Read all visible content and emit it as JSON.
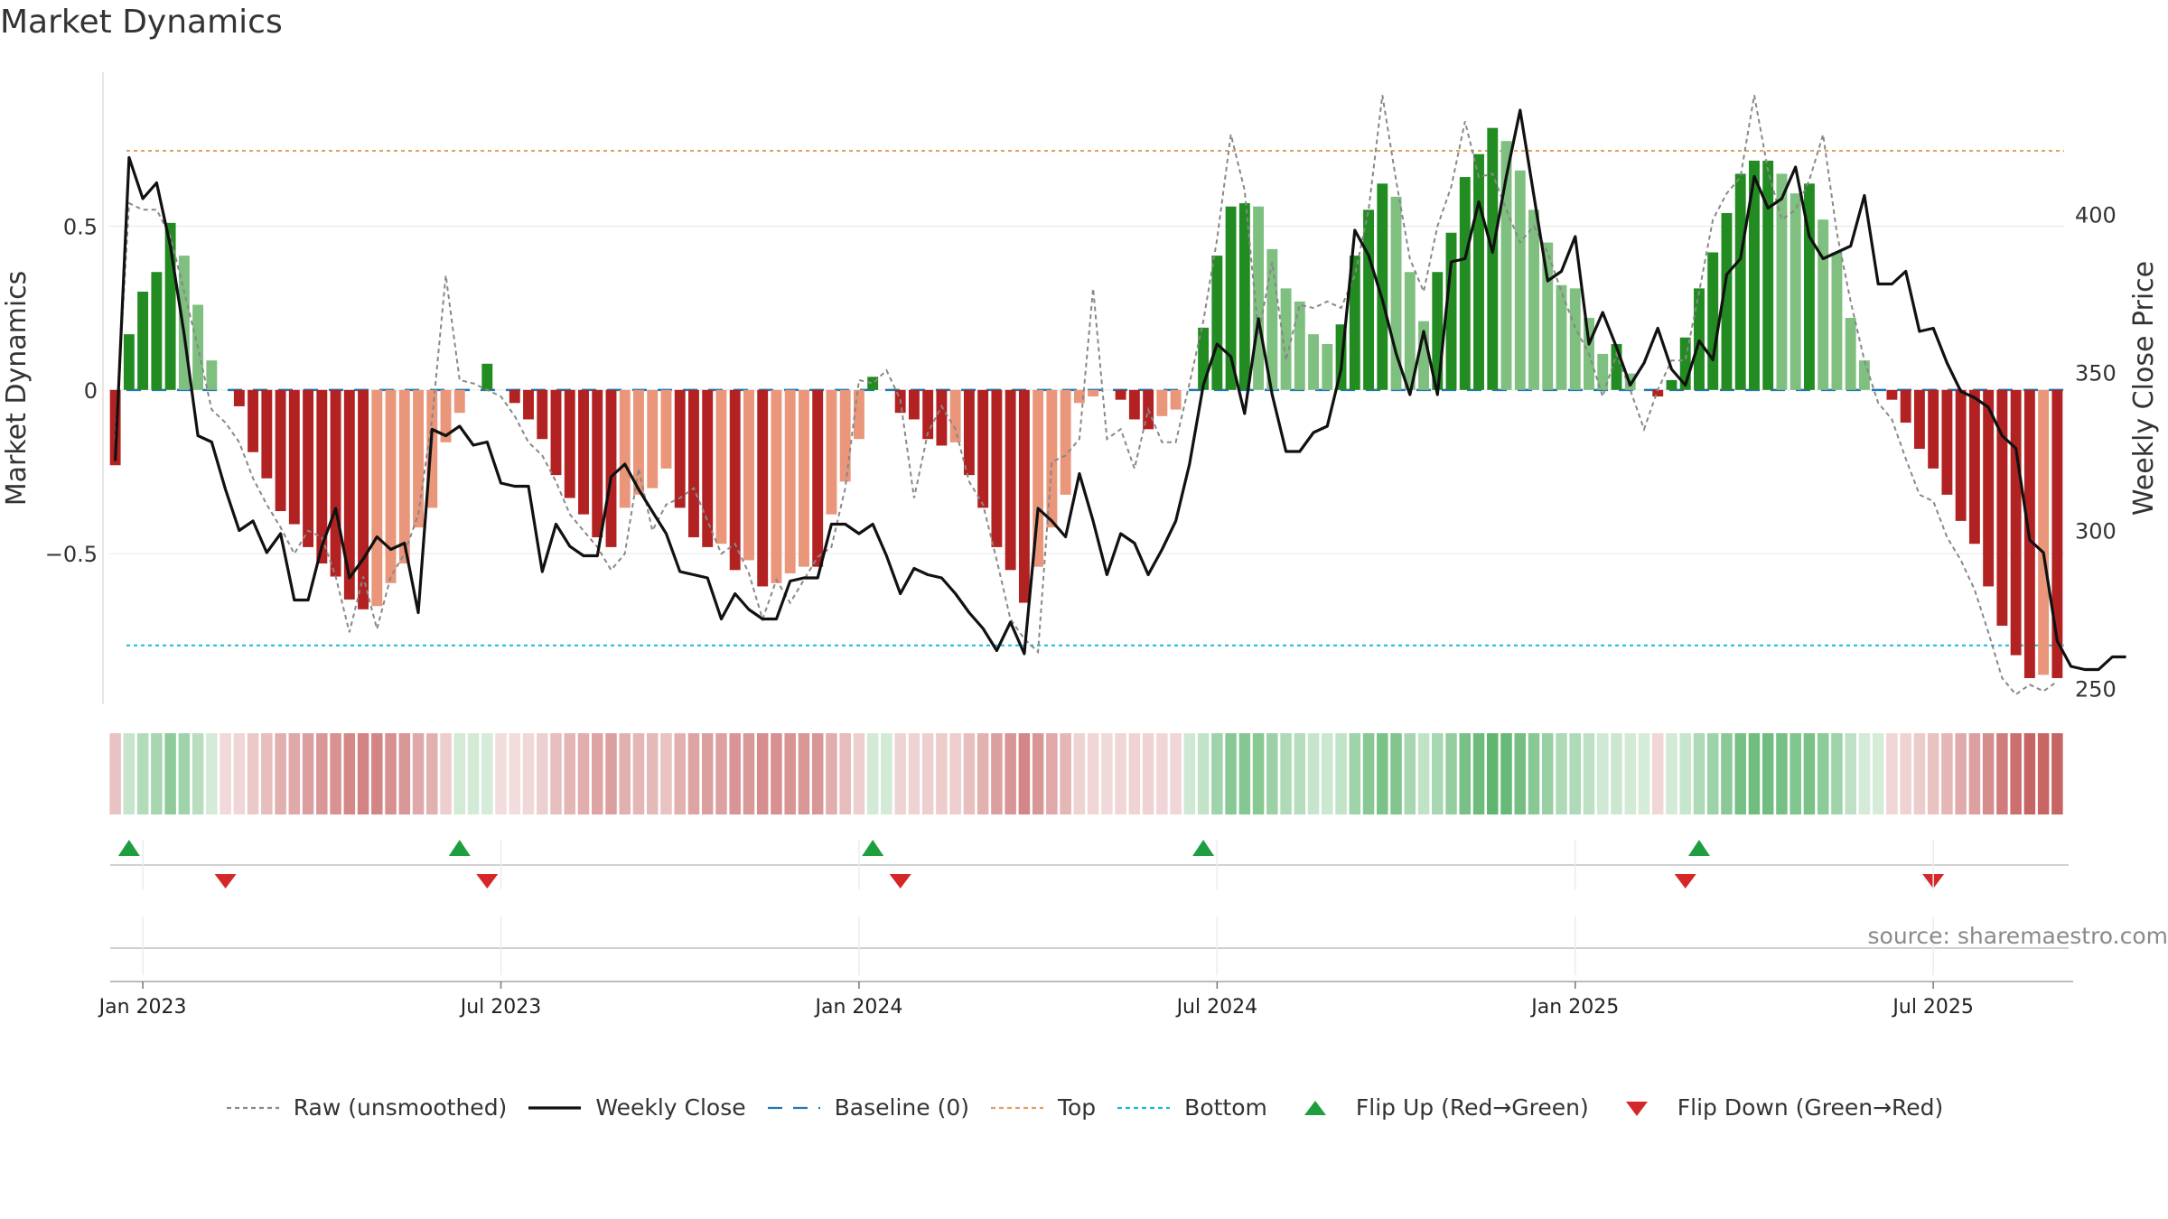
{
  "title": "Market Dynamics",
  "source": "source: sharemaestro.com",
  "colors": {
    "green_strong": "#228b22",
    "green_light": "#7fbf7f",
    "red_strong": "#b22222",
    "red_light": "#e9967a",
    "baseline": "#1f77b4",
    "top": "#e0a060",
    "bottom": "#17becf",
    "raw": "#888888",
    "close": "#111111",
    "flip_up": "#1e9e3e",
    "flip_down": "#d62728"
  },
  "legend": [
    {
      "key": "raw",
      "label": "Raw (unsmoothed)",
      "style": "dotted-line"
    },
    {
      "key": "close",
      "label": "Weekly Close",
      "style": "solid-line"
    },
    {
      "key": "baseline",
      "label": "Baseline (0)",
      "style": "dashed-line"
    },
    {
      "key": "top",
      "label": "Top",
      "style": "dotted-line"
    },
    {
      "key": "bottom",
      "label": "Bottom",
      "style": "dotted-line"
    },
    {
      "key": "flip_up",
      "label": "Flip Up (Red→Green)",
      "style": "triangle-up"
    },
    {
      "key": "flip_down",
      "label": "Flip Down (Green→Red)",
      "style": "triangle-down"
    }
  ],
  "chart_data": {
    "type": "bar",
    "ylabel_left": "Market Dynamics",
    "ylabel_right": "Weekly Close Price",
    "left_ylim": [
      -0.96,
      0.97
    ],
    "left_ticks": [
      {
        "v": 0.5,
        "label": "0.5"
      },
      {
        "v": 0,
        "label": "0"
      },
      {
        "v": -0.5,
        "label": "−0.5"
      }
    ],
    "right_ylim": [
      245,
      445
    ],
    "right_ticks": [
      {
        "v": 250,
        "label": "250"
      },
      {
        "v": 300,
        "label": "300"
      },
      {
        "v": 350,
        "label": "350"
      },
      {
        "v": 400,
        "label": "400"
      }
    ],
    "top_level": 0.73,
    "bottom_level": -0.78,
    "x_tick_labels": [
      {
        "week": 2,
        "label": "Jan 2023"
      },
      {
        "week": 28,
        "label": "Jul 2023"
      },
      {
        "week": 54,
        "label": "Jan 2024"
      },
      {
        "week": 80,
        "label": "Jul 2024"
      },
      {
        "week": 106,
        "label": "Jan 2025"
      },
      {
        "week": 132,
        "label": "Jul 2025"
      }
    ],
    "dynamics": [
      -0.23,
      0.17,
      0.3,
      0.36,
      0.51,
      0.41,
      0.26,
      0.09,
      0.0,
      -0.05,
      -0.19,
      -0.27,
      -0.37,
      -0.41,
      -0.48,
      -0.53,
      -0.57,
      -0.64,
      -0.67,
      -0.66,
      -0.59,
      -0.53,
      -0.42,
      -0.36,
      -0.16,
      -0.07,
      0.0,
      0.08,
      0.0,
      -0.04,
      -0.09,
      -0.15,
      -0.26,
      -0.33,
      -0.38,
      -0.45,
      -0.48,
      -0.36,
      -0.32,
      -0.3,
      -0.24,
      -0.36,
      -0.45,
      -0.48,
      -0.47,
      -0.55,
      -0.52,
      -0.6,
      -0.59,
      -0.56,
      -0.54,
      -0.54,
      -0.38,
      -0.28,
      -0.15,
      0.04,
      0.0,
      -0.07,
      -0.09,
      -0.15,
      -0.17,
      -0.16,
      -0.26,
      -0.36,
      -0.48,
      -0.55,
      -0.65,
      -0.54,
      -0.42,
      -0.32,
      -0.04,
      -0.02,
      0.0,
      -0.03,
      -0.09,
      -0.12,
      -0.08,
      -0.06,
      0.0,
      0.19,
      0.41,
      0.56,
      0.57,
      0.56,
      0.43,
      0.31,
      0.27,
      0.17,
      0.14,
      0.2,
      0.41,
      0.55,
      0.63,
      0.59,
      0.36,
      0.21,
      0.36,
      0.48,
      0.65,
      0.72,
      0.8,
      0.76,
      0.67,
      0.55,
      0.45,
      0.32,
      0.31,
      0.22,
      0.11,
      0.14,
      0.05,
      0.0,
      -0.02,
      0.03,
      0.16,
      0.31,
      0.42,
      0.54,
      0.66,
      0.7,
      0.7,
      0.66,
      0.6,
      0.63,
      0.52,
      0.42,
      0.22,
      0.09,
      0.0,
      -0.03,
      -0.1,
      -0.18,
      -0.24,
      -0.32,
      -0.4,
      -0.47,
      -0.6,
      -0.72,
      -0.81,
      -0.88,
      -0.87,
      -0.88
    ],
    "raw": [
      -0.15,
      0.57,
      0.55,
      0.55,
      0.47,
      0.3,
      0.13,
      -0.06,
      -0.1,
      -0.16,
      -0.27,
      -0.35,
      -0.42,
      -0.5,
      -0.43,
      -0.45,
      -0.57,
      -0.74,
      -0.57,
      -0.73,
      -0.57,
      -0.5,
      -0.38,
      -0.09,
      0.35,
      0.03,
      0.02,
      0.0,
      -0.02,
      -0.08,
      -0.16,
      -0.2,
      -0.28,
      -0.38,
      -0.43,
      -0.48,
      -0.55,
      -0.5,
      -0.24,
      -0.43,
      -0.35,
      -0.33,
      -0.3,
      -0.4,
      -0.5,
      -0.47,
      -0.56,
      -0.7,
      -0.58,
      -0.65,
      -0.58,
      -0.51,
      -0.48,
      -0.3,
      0.03,
      0.02,
      0.06,
      -0.03,
      -0.33,
      -0.13,
      -0.05,
      -0.12,
      -0.28,
      -0.35,
      -0.52,
      -0.7,
      -0.76,
      -0.8,
      -0.22,
      -0.2,
      -0.15,
      0.31,
      -0.15,
      -0.12,
      -0.24,
      -0.06,
      -0.16,
      -0.16,
      0.02,
      0.21,
      0.46,
      0.78,
      0.61,
      0.17,
      0.39,
      0.09,
      0.26,
      0.25,
      0.27,
      0.25,
      0.35,
      0.55,
      0.9,
      0.64,
      0.4,
      0.3,
      0.5,
      0.62,
      0.82,
      0.65,
      0.66,
      0.55,
      0.45,
      0.5,
      0.42,
      0.3,
      0.19,
      0.11,
      -0.02,
      0.11,
      0.0,
      -0.12,
      0.0,
      0.09,
      0.09,
      0.3,
      0.52,
      0.6,
      0.65,
      0.9,
      0.67,
      0.52,
      0.55,
      0.64,
      0.78,
      0.48,
      0.27,
      0.09,
      -0.04,
      -0.09,
      -0.21,
      -0.32,
      -0.34,
      -0.45,
      -0.52,
      -0.61,
      -0.74,
      -0.88,
      -0.93,
      -0.9,
      -0.92,
      -0.89
    ],
    "close": [
      322,
      418,
      405,
      410,
      390,
      362,
      330,
      328,
      313,
      300,
      303,
      293,
      299,
      278,
      278,
      295,
      307,
      285,
      291,
      298,
      294,
      296,
      274,
      332,
      330,
      333,
      327,
      328,
      315,
      314,
      314,
      287,
      302,
      295,
      292,
      292,
      317,
      321,
      313,
      306,
      299,
      287,
      286,
      285,
      272,
      280,
      275,
      272,
      272,
      284,
      285,
      285,
      302,
      302,
      299,
      302,
      292,
      280,
      288,
      286,
      285,
      280,
      274,
      269,
      262,
      271,
      261,
      307,
      303,
      298,
      318,
      303,
      286,
      299,
      296,
      286,
      294,
      303,
      321,
      346,
      359,
      355,
      337,
      367,
      343,
      325,
      325,
      331,
      333,
      351,
      395,
      387,
      373,
      356,
      343,
      363,
      343,
      385,
      386,
      404,
      388,
      412,
      433,
      406,
      379,
      382,
      393,
      359,
      369,
      358,
      346,
      353,
      364,
      351,
      346,
      360,
      354,
      381,
      386,
      412,
      402,
      405,
      415,
      393,
      386,
      388,
      390,
      406,
      378,
      378,
      382,
      363,
      364,
      353,
      344,
      342,
      339,
      330,
      326,
      297,
      293,
      265,
      257,
      256,
      256,
      260,
      260
    ],
    "flip_up_weeks": [
      1,
      25,
      55,
      79,
      115
    ],
    "flip_down_weeks": [
      8,
      27,
      57,
      114,
      132
    ],
    "heat": [
      -0.23,
      0.17,
      0.3,
      0.36,
      0.51,
      0.41,
      0.26,
      0.09,
      -0.08,
      -0.1,
      -0.19,
      -0.27,
      -0.37,
      -0.41,
      -0.48,
      -0.53,
      -0.57,
      -0.64,
      -0.67,
      -0.66,
      -0.59,
      -0.53,
      -0.42,
      -0.36,
      -0.16,
      0.1,
      0.1,
      0.08,
      -0.06,
      -0.06,
      -0.09,
      -0.15,
      -0.26,
      -0.33,
      -0.38,
      -0.45,
      -0.48,
      -0.36,
      -0.32,
      -0.3,
      -0.24,
      -0.36,
      -0.45,
      -0.48,
      -0.47,
      -0.55,
      -0.52,
      -0.6,
      -0.59,
      -0.56,
      -0.54,
      -0.54,
      -0.38,
      -0.28,
      -0.15,
      0.1,
      0.1,
      -0.12,
      -0.12,
      -0.15,
      -0.17,
      -0.16,
      -0.26,
      -0.36,
      -0.48,
      -0.55,
      -0.65,
      -0.54,
      -0.42,
      -0.32,
      -0.12,
      -0.1,
      -0.08,
      -0.1,
      -0.12,
      -0.12,
      -0.1,
      -0.1,
      0.12,
      0.19,
      0.41,
      0.56,
      0.57,
      0.56,
      0.43,
      0.31,
      0.27,
      0.17,
      0.14,
      0.2,
      0.41,
      0.55,
      0.63,
      0.59,
      0.36,
      0.21,
      0.36,
      0.48,
      0.65,
      0.72,
      0.8,
      0.76,
      0.67,
      0.55,
      0.45,
      0.32,
      0.31,
      0.22,
      0.11,
      0.14,
      0.1,
      0.08,
      -0.1,
      0.1,
      0.16,
      0.31,
      0.42,
      0.54,
      0.66,
      0.7,
      0.7,
      0.66,
      0.6,
      0.63,
      0.52,
      0.42,
      0.22,
      0.09,
      0.08,
      -0.1,
      -0.12,
      -0.18,
      -0.24,
      -0.32,
      -0.4,
      -0.47,
      -0.6,
      -0.72,
      -0.81,
      -0.88,
      -0.87,
      -0.88
    ]
  }
}
